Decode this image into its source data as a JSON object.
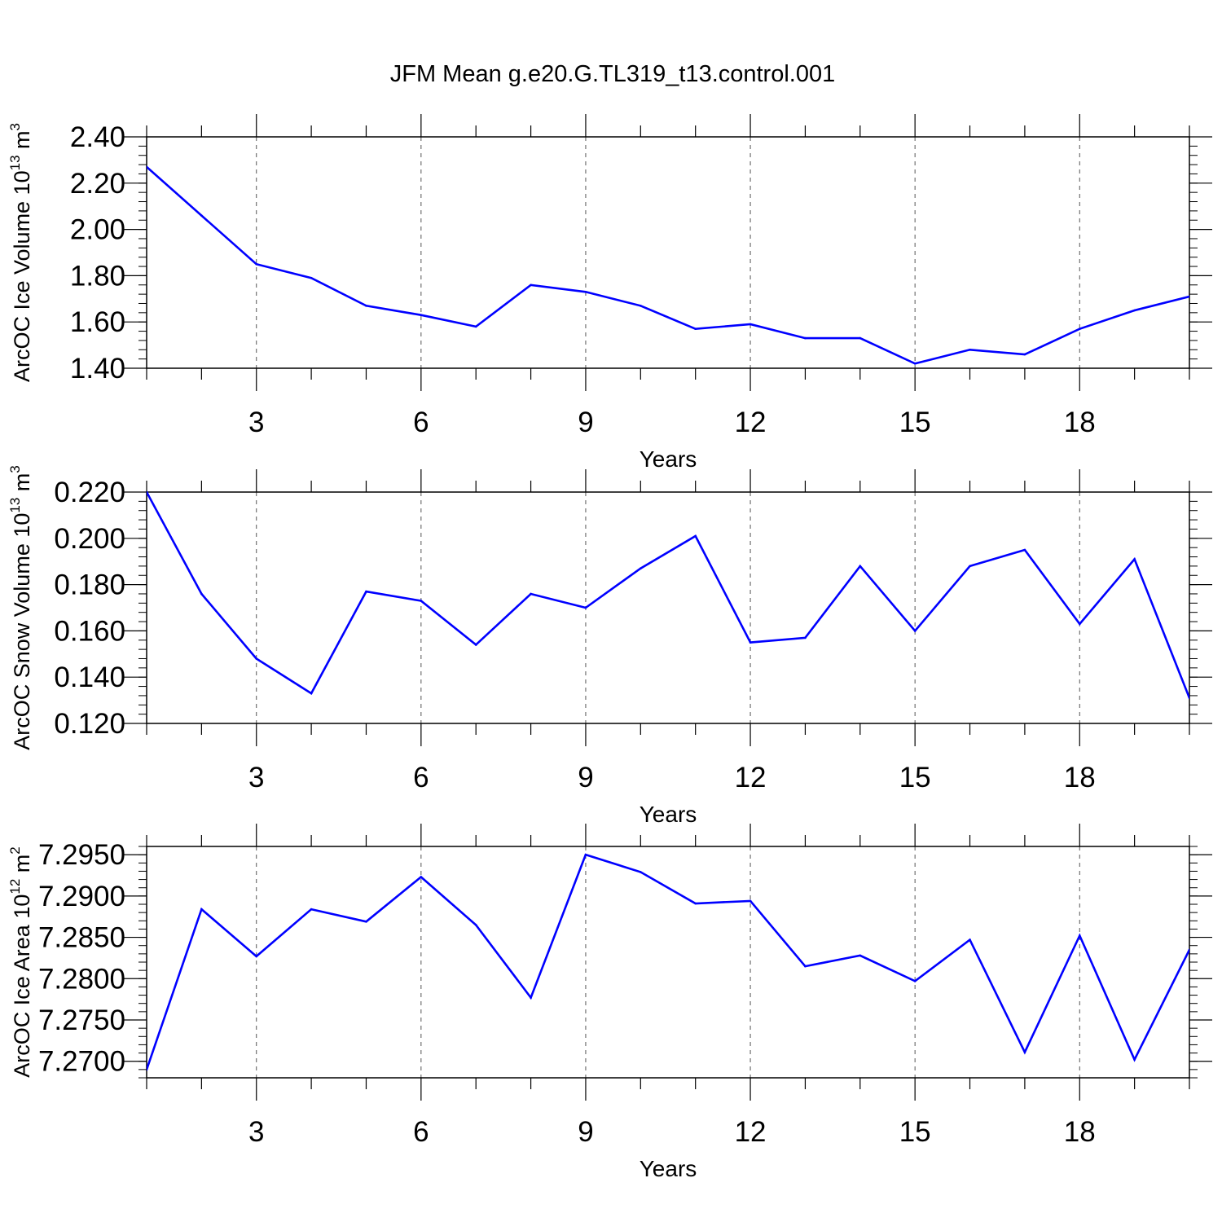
{
  "figure": {
    "title": "JFM Mean g.e20.G.TL319_t13.control.001",
    "line_color": "#0000ff",
    "grid_color": "#555555"
  },
  "chart_data": [
    {
      "type": "line",
      "ylabel_main": "ArcOC Ice Volume 10",
      "ylabel_exp": "13",
      "ylabel_unit": " m",
      "ylabel_unit_exp": "3",
      "xlabel": "Years",
      "xlim": [
        1,
        20
      ],
      "ylim": [
        1.4,
        2.4
      ],
      "x_major_ticks": [
        3,
        6,
        9,
        12,
        15,
        18
      ],
      "x_tick_labels": [
        "3",
        "6",
        "9",
        "12",
        "15",
        "18"
      ],
      "y_major_ticks": [
        1.4,
        1.6,
        1.8,
        2.0,
        2.2,
        2.4
      ],
      "y_tick_labels": [
        "1.40",
        "1.60",
        "1.80",
        "2.00",
        "2.20",
        "2.40"
      ],
      "y_minor_step": 0.04,
      "grid": "vertical dashed at major x ticks",
      "x": [
        1,
        2,
        3,
        4,
        5,
        6,
        7,
        8,
        9,
        10,
        11,
        12,
        13,
        14,
        15,
        16,
        17,
        18,
        19,
        20
      ],
      "y": [
        2.27,
        2.06,
        1.85,
        1.79,
        1.67,
        1.63,
        1.58,
        1.76,
        1.73,
        1.67,
        1.57,
        1.59,
        1.53,
        1.53,
        1.42,
        1.48,
        1.46,
        1.57,
        1.65,
        1.71
      ]
    },
    {
      "type": "line",
      "ylabel_main": "ArcOC Snow Volume 10",
      "ylabel_exp": "13",
      "ylabel_unit": " m",
      "ylabel_unit_exp": "3",
      "xlabel": "Years",
      "xlim": [
        1,
        20
      ],
      "ylim": [
        0.12,
        0.22
      ],
      "x_major_ticks": [
        3,
        6,
        9,
        12,
        15,
        18
      ],
      "x_tick_labels": [
        "3",
        "6",
        "9",
        "12",
        "15",
        "18"
      ],
      "y_major_ticks": [
        0.12,
        0.14,
        0.16,
        0.18,
        0.2,
        0.22
      ],
      "y_tick_labels": [
        "0.120",
        "0.140",
        "0.160",
        "0.180",
        "0.200",
        "0.220"
      ],
      "y_minor_step": 0.004,
      "grid": "vertical dashed at major x ticks",
      "x": [
        1,
        2,
        3,
        4,
        5,
        6,
        7,
        8,
        9,
        10,
        11,
        12,
        13,
        14,
        15,
        16,
        17,
        18,
        19,
        20
      ],
      "y": [
        0.22,
        0.176,
        0.148,
        0.133,
        0.177,
        0.173,
        0.154,
        0.176,
        0.17,
        0.187,
        0.201,
        0.155,
        0.157,
        0.188,
        0.16,
        0.188,
        0.195,
        0.163,
        0.191,
        0.131
      ]
    },
    {
      "type": "line",
      "ylabel_main": "ArcOC Ice Area 10",
      "ylabel_exp": "12",
      "ylabel_unit": " m",
      "ylabel_unit_exp": "2",
      "xlabel": "Years",
      "xlim": [
        1,
        20
      ],
      "ylim": [
        7.268,
        7.296
      ],
      "x_major_ticks": [
        3,
        6,
        9,
        12,
        15,
        18
      ],
      "x_tick_labels": [
        "3",
        "6",
        "9",
        "12",
        "15",
        "18"
      ],
      "y_major_ticks": [
        7.27,
        7.275,
        7.28,
        7.285,
        7.29,
        7.295
      ],
      "y_tick_labels": [
        "7.2700",
        "7.2750",
        "7.2800",
        "7.2850",
        "7.2900",
        "7.2950"
      ],
      "y_minor_step": 0.001,
      "grid": "vertical dashed at major x ticks",
      "x": [
        1,
        2,
        3,
        4,
        5,
        6,
        7,
        8,
        9,
        10,
        11,
        12,
        13,
        14,
        15,
        16,
        17,
        18,
        19,
        20
      ],
      "y": [
        7.269,
        7.2884,
        7.2827,
        7.2884,
        7.2869,
        7.2923,
        7.2865,
        7.2777,
        7.295,
        7.2929,
        7.2891,
        7.2894,
        7.2815,
        7.2828,
        7.2797,
        7.2847,
        7.2711,
        7.2852,
        7.2702,
        7.2835
      ]
    }
  ]
}
